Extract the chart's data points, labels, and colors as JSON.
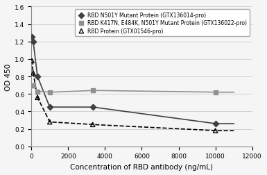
{
  "series1_name": "RBD N501Y Mutant Protein (GTX136014-pro)",
  "series2_name": "RBD K417N, E484K, N501Y Mutant Protein (GTX136022-pro)",
  "series3_name": "RBD Protein (GTX01546-pro)",
  "series1_x": [
    33,
    100,
    333,
    1000,
    3333,
    10000
  ],
  "series1_y": [
    1.25,
    1.2,
    0.8,
    0.45,
    0.45,
    0.26
  ],
  "series2_x": [
    33,
    100,
    333,
    1000,
    3333,
    10000
  ],
  "series2_y": [
    0.7,
    0.7,
    0.63,
    0.62,
    0.64,
    0.62
  ],
  "series3_x": [
    33,
    100,
    333,
    1000,
    3333,
    10000
  ],
  "series3_y": [
    0.98,
    0.84,
    0.56,
    0.28,
    0.25,
    0.18
  ],
  "series1_color": "#404040",
  "series2_color": "#909090",
  "series3_color": "#000000",
  "xlabel": "Concentration of RBD antibody (ng/mL)",
  "ylabel": "OD 450",
  "xlim": [
    0,
    12000
  ],
  "ylim": [
    0,
    1.6
  ],
  "xticks": [
    0,
    2000,
    4000,
    6000,
    8000,
    10000,
    12000
  ],
  "yticks": [
    0,
    0.2,
    0.4,
    0.6,
    0.8,
    1.0,
    1.2,
    1.4,
    1.6
  ],
  "figsize": [
    3.85,
    2.53
  ],
  "dpi": 100
}
